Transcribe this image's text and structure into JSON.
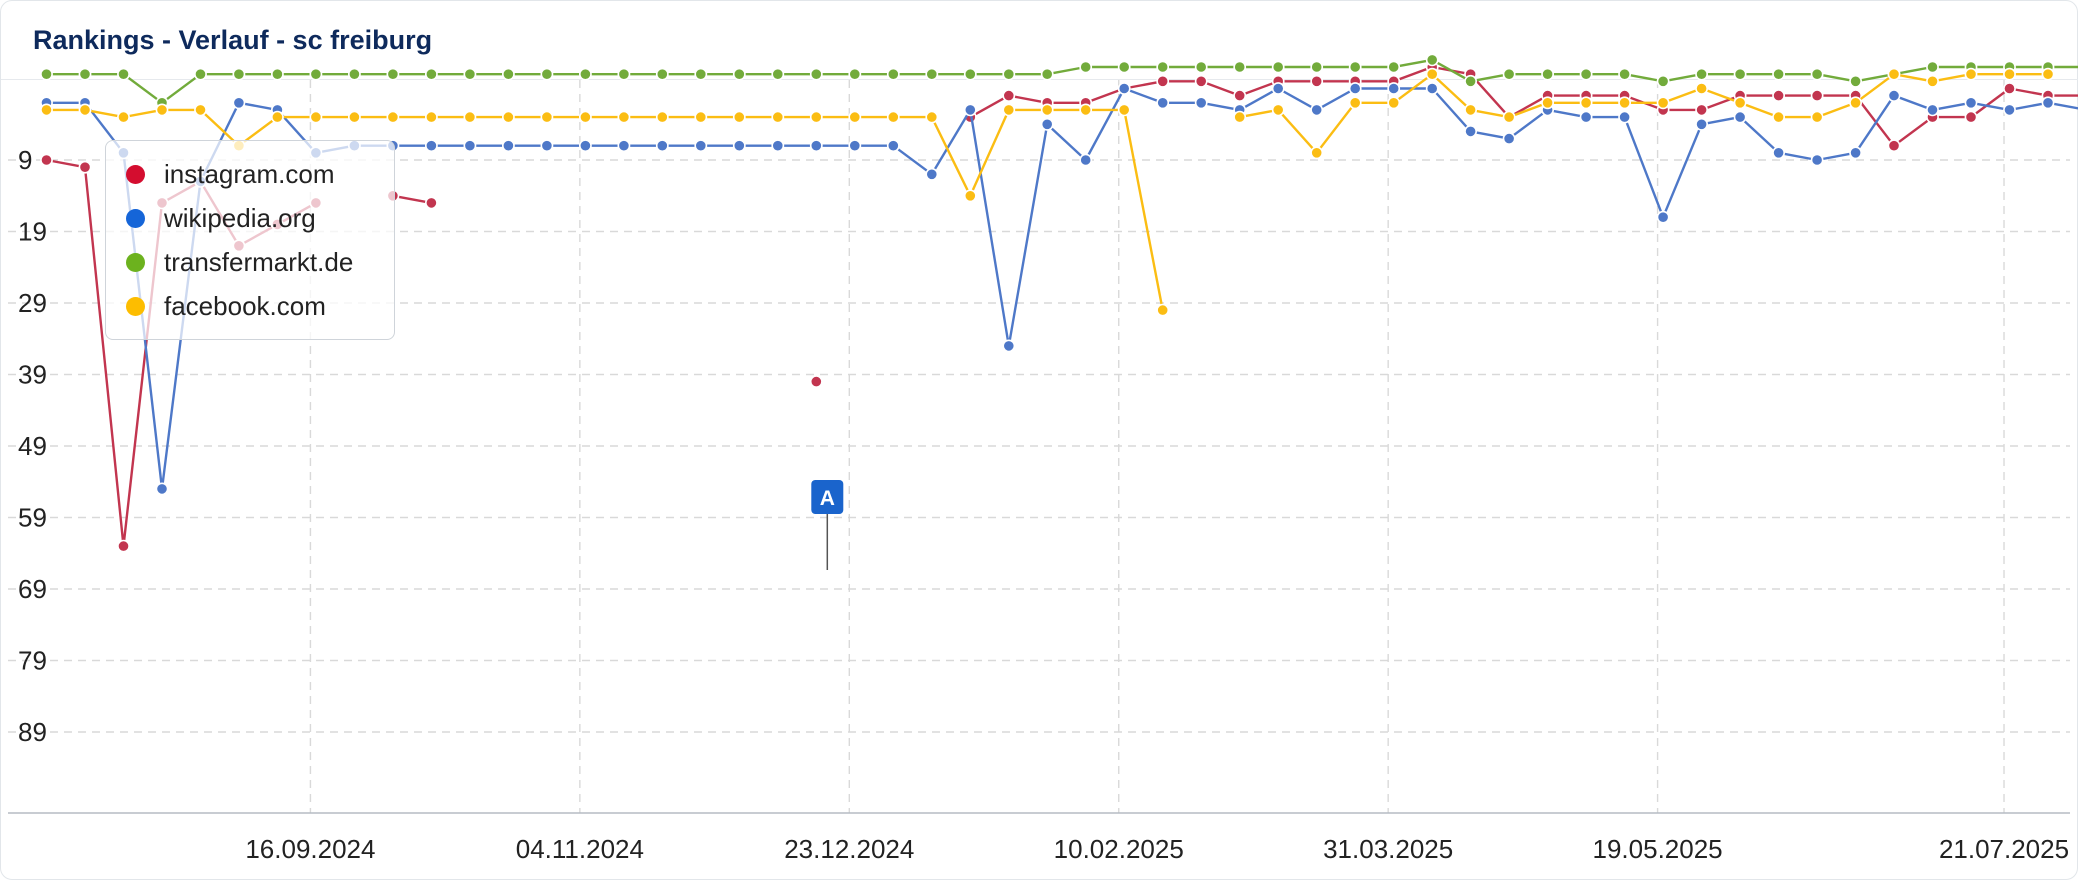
{
  "header": {
    "title": "Rankings - Verlauf - sc freiburg"
  },
  "colors": {
    "instagram": "#c2354f",
    "wikipedia": "#4e78c8",
    "transfermarkt": "#72ab3b",
    "facebook": "#fbbd13",
    "annotation": "#1a64cc",
    "grid": "#d9d9d9"
  },
  "chart_data": {
    "type": "line",
    "title": "Rankings - Verlauf - sc freiburg",
    "xlabel": "",
    "ylabel": "",
    "ylim": [
      1,
      100
    ],
    "y_inverted": true,
    "yticks": [
      "9",
      "19",
      "29",
      "39",
      "49",
      "59",
      "69",
      "79",
      "89"
    ],
    "xticks": [
      "16.09.2024",
      "04.11.2024",
      "23.12.2024",
      "10.02.2025",
      "31.03.2025",
      "19.05.2025",
      "21.07.2025"
    ],
    "legend_position": "top-left",
    "grid": true,
    "x_range": [
      "2024-07-30",
      "2025-07-28"
    ],
    "annotations": [
      {
        "label": "A",
        "date": "2024-12-19"
      }
    ],
    "series": [
      {
        "name": "instagram.com",
        "color_key": "instagram",
        "points": [
          [
            "2024-07-30",
            9
          ],
          [
            "2024-08-06",
            10
          ],
          [
            "2024-08-13",
            63
          ],
          [
            "2024-08-20",
            15
          ],
          [
            "2024-08-27",
            12
          ],
          [
            "2024-09-03",
            21
          ],
          [
            "2024-09-10",
            18
          ],
          [
            "2024-09-17",
            15
          ],
          null,
          [
            "2024-10-01",
            14
          ],
          [
            "2024-10-08",
            15
          ],
          null,
          [
            "2024-12-17",
            40
          ],
          null,
          [
            "2025-01-14",
            3
          ],
          [
            "2025-01-21",
            0
          ],
          [
            "2025-01-28",
            1
          ],
          [
            "2025-02-04",
            1
          ],
          [
            "2025-02-11",
            -1
          ],
          [
            "2025-02-18",
            -2
          ],
          [
            "2025-02-25",
            -2
          ],
          [
            "2025-03-04",
            0
          ],
          [
            "2025-03-11",
            -2
          ],
          [
            "2025-03-18",
            -2
          ],
          [
            "2025-03-25",
            -2
          ],
          [
            "2025-04-01",
            -2
          ],
          [
            "2025-04-08",
            -4
          ],
          [
            "2025-04-15",
            -3
          ],
          [
            "2025-04-22",
            3
          ],
          [
            "2025-04-29",
            0
          ],
          [
            "2025-05-06",
            0
          ],
          [
            "2025-05-13",
            0
          ],
          [
            "2025-05-20",
            2
          ],
          [
            "2025-05-27",
            2
          ],
          [
            "2025-06-03",
            0
          ],
          [
            "2025-06-10",
            0
          ],
          [
            "2025-06-17",
            0
          ],
          [
            "2025-06-24",
            0
          ],
          [
            "2025-07-01",
            7
          ],
          [
            "2025-07-08",
            3
          ],
          [
            "2025-07-15",
            3
          ],
          [
            "2025-07-22",
            -1
          ],
          [
            "2025-07-29",
            0
          ],
          [
            "2025-08-05",
            0
          ]
        ]
      },
      {
        "name": "wikipedia.org",
        "color_key": "wikipedia",
        "points": [
          [
            "2024-07-30",
            1
          ],
          [
            "2024-08-06",
            1
          ],
          [
            "2024-08-13",
            8
          ],
          [
            "2024-08-20",
            55
          ],
          [
            "2024-08-27",
            12
          ],
          [
            "2024-09-03",
            1
          ],
          [
            "2024-09-10",
            2
          ],
          [
            "2024-09-17",
            8
          ],
          [
            "2024-09-24",
            7
          ],
          [
            "2024-10-01",
            7
          ],
          [
            "2024-10-08",
            7
          ],
          [
            "2024-10-15",
            7
          ],
          [
            "2024-10-22",
            7
          ],
          [
            "2024-10-29",
            7
          ],
          [
            "2024-11-05",
            7
          ],
          [
            "2024-11-12",
            7
          ],
          [
            "2024-11-19",
            7
          ],
          [
            "2024-11-26",
            7
          ],
          [
            "2024-12-03",
            7
          ],
          [
            "2024-12-10",
            7
          ],
          [
            "2024-12-17",
            7
          ],
          [
            "2024-12-24",
            7
          ],
          [
            "2024-12-31",
            7
          ],
          [
            "2025-01-07",
            11
          ],
          [
            "2025-01-14",
            2
          ],
          [
            "2025-01-21",
            35
          ],
          [
            "2025-01-28",
            4
          ],
          [
            "2025-02-04",
            9
          ],
          [
            "2025-02-11",
            -1
          ],
          [
            "2025-02-18",
            1
          ],
          [
            "2025-02-25",
            1
          ],
          [
            "2025-03-04",
            2
          ],
          [
            "2025-03-11",
            -1
          ],
          [
            "2025-03-18",
            2
          ],
          [
            "2025-03-25",
            -1
          ],
          [
            "2025-04-01",
            -1
          ],
          [
            "2025-04-08",
            -1
          ],
          [
            "2025-04-15",
            5
          ],
          [
            "2025-04-22",
            6
          ],
          [
            "2025-04-29",
            2
          ],
          [
            "2025-05-06",
            3
          ],
          [
            "2025-05-13",
            3
          ],
          [
            "2025-05-20",
            17
          ],
          [
            "2025-05-27",
            4
          ],
          [
            "2025-06-03",
            3
          ],
          [
            "2025-06-10",
            8
          ],
          [
            "2025-06-17",
            9
          ],
          [
            "2025-06-24",
            8
          ],
          [
            "2025-07-01",
            0
          ],
          [
            "2025-07-08",
            2
          ],
          [
            "2025-07-15",
            1
          ],
          [
            "2025-07-22",
            2
          ],
          [
            "2025-07-29",
            1
          ],
          [
            "2025-08-05",
            2
          ]
        ]
      },
      {
        "name": "transfermarkt.de",
        "color_key": "transfermarkt",
        "points": [
          [
            "2024-07-30",
            -3
          ],
          [
            "2024-08-06",
            -3
          ],
          [
            "2024-08-13",
            -3
          ],
          [
            "2024-08-20",
            1
          ],
          [
            "2024-08-27",
            -3
          ],
          [
            "2024-09-03",
            -3
          ],
          [
            "2024-09-10",
            -3
          ],
          [
            "2024-09-17",
            -3
          ],
          [
            "2024-09-24",
            -3
          ],
          [
            "2024-10-01",
            -3
          ],
          [
            "2024-10-08",
            -3
          ],
          [
            "2024-10-15",
            -3
          ],
          [
            "2024-10-22",
            -3
          ],
          [
            "2024-10-29",
            -3
          ],
          [
            "2024-11-05",
            -3
          ],
          [
            "2024-11-12",
            -3
          ],
          [
            "2024-11-19",
            -3
          ],
          [
            "2024-11-26",
            -3
          ],
          [
            "2024-12-03",
            -3
          ],
          [
            "2024-12-10",
            -3
          ],
          [
            "2024-12-17",
            -3
          ],
          [
            "2024-12-24",
            -3
          ],
          [
            "2024-12-31",
            -3
          ],
          [
            "2025-01-07",
            -3
          ],
          [
            "2025-01-14",
            -3
          ],
          [
            "2025-01-21",
            -3
          ],
          [
            "2025-01-28",
            -3
          ],
          [
            "2025-02-04",
            -4
          ],
          [
            "2025-02-11",
            -4
          ],
          [
            "2025-02-18",
            -4
          ],
          [
            "2025-02-25",
            -4
          ],
          [
            "2025-03-04",
            -4
          ],
          [
            "2025-03-11",
            -4
          ],
          [
            "2025-03-18",
            -4
          ],
          [
            "2025-03-25",
            -4
          ],
          [
            "2025-04-01",
            -4
          ],
          [
            "2025-04-08",
            -5
          ],
          [
            "2025-04-15",
            -2
          ],
          [
            "2025-04-22",
            -3
          ],
          [
            "2025-04-29",
            -3
          ],
          [
            "2025-05-06",
            -3
          ],
          [
            "2025-05-13",
            -3
          ],
          [
            "2025-05-20",
            -2
          ],
          [
            "2025-05-27",
            -3
          ],
          [
            "2025-06-03",
            -3
          ],
          [
            "2025-06-10",
            -3
          ],
          [
            "2025-06-17",
            -3
          ],
          [
            "2025-06-24",
            -2
          ],
          [
            "2025-07-01",
            -3
          ],
          [
            "2025-07-08",
            -4
          ],
          [
            "2025-07-15",
            -4
          ],
          [
            "2025-07-22",
            -4
          ],
          [
            "2025-07-29",
            -4
          ],
          [
            "2025-08-05",
            -4
          ]
        ]
      },
      {
        "name": "facebook.com",
        "color_key": "facebook",
        "points": [
          [
            "2024-07-30",
            2
          ],
          [
            "2024-08-06",
            2
          ],
          [
            "2024-08-13",
            3
          ],
          [
            "2024-08-20",
            2
          ],
          [
            "2024-08-27",
            2
          ],
          [
            "2024-09-03",
            7
          ],
          [
            "2024-09-10",
            3
          ],
          [
            "2024-09-17",
            3
          ],
          [
            "2024-09-24",
            3
          ],
          [
            "2024-10-01",
            3
          ],
          [
            "2024-10-08",
            3
          ],
          [
            "2024-10-15",
            3
          ],
          [
            "2024-10-22",
            3
          ],
          [
            "2024-10-29",
            3
          ],
          [
            "2024-11-05",
            3
          ],
          [
            "2024-11-12",
            3
          ],
          [
            "2024-11-19",
            3
          ],
          [
            "2024-11-26",
            3
          ],
          [
            "2024-12-03",
            3
          ],
          [
            "2024-12-10",
            3
          ],
          [
            "2024-12-17",
            3
          ],
          [
            "2024-12-24",
            3
          ],
          [
            "2024-12-31",
            3
          ],
          [
            "2025-01-07",
            3
          ],
          [
            "2025-01-14",
            14
          ],
          [
            "2025-01-21",
            2
          ],
          [
            "2025-01-28",
            2
          ],
          [
            "2025-02-04",
            2
          ],
          [
            "2025-02-11",
            2
          ],
          [
            "2025-02-18",
            30
          ],
          null,
          [
            "2025-03-04",
            3
          ],
          [
            "2025-03-11",
            2
          ],
          [
            "2025-03-18",
            8
          ],
          [
            "2025-03-25",
            1
          ],
          [
            "2025-04-01",
            1
          ],
          [
            "2025-04-08",
            -3
          ],
          [
            "2025-04-15",
            2
          ],
          [
            "2025-04-22",
            3
          ],
          [
            "2025-04-29",
            1
          ],
          [
            "2025-05-06",
            1
          ],
          [
            "2025-05-13",
            1
          ],
          [
            "2025-05-20",
            1
          ],
          [
            "2025-05-27",
            -1
          ],
          [
            "2025-06-03",
            1
          ],
          [
            "2025-06-10",
            3
          ],
          [
            "2025-06-17",
            3
          ],
          [
            "2025-06-24",
            1
          ],
          [
            "2025-07-01",
            -3
          ],
          [
            "2025-07-08",
            -2
          ],
          [
            "2025-07-15",
            -3
          ],
          [
            "2025-07-22",
            -3
          ],
          [
            "2025-07-29",
            -3
          ]
        ]
      }
    ]
  }
}
